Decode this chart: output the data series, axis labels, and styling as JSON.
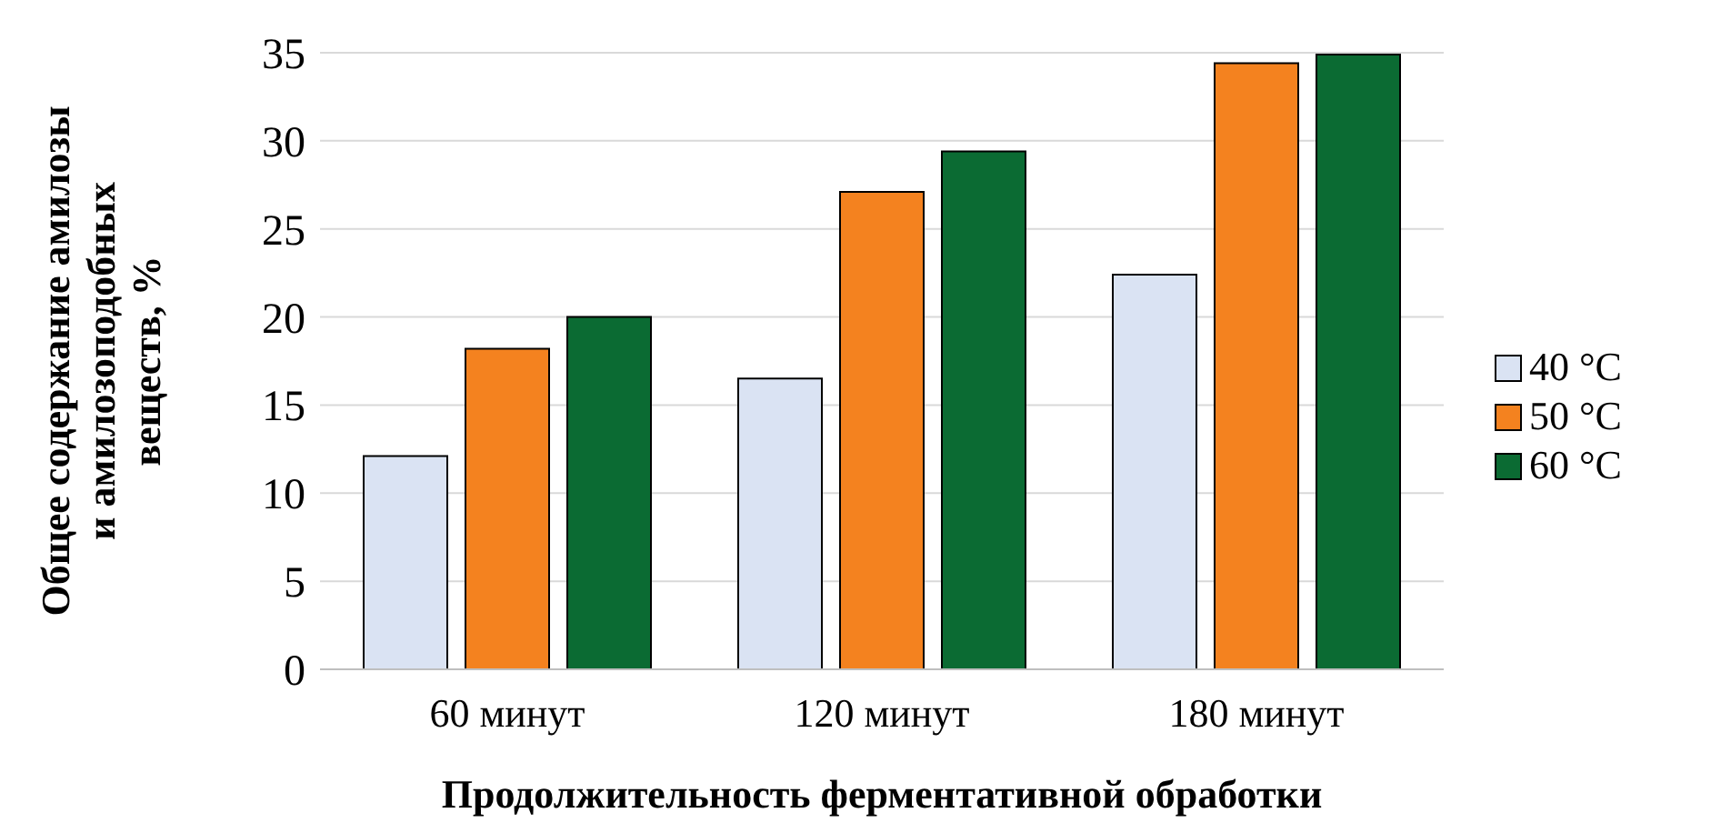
{
  "chart_data": {
    "type": "bar",
    "xlabel": "Продолжительность ферментативной обработки",
    "ylabel": "Общее содержание амилозы\nи амилозоподобных\nвеществ, %",
    "categories": [
      "60 минут",
      "120 минут",
      "180 минут"
    ],
    "series": [
      {
        "name": "40 °C",
        "color": "#dae3f3",
        "values": [
          12.1,
          16.5,
          22.4
        ]
      },
      {
        "name": "50 °C",
        "color": "#f4821f",
        "values": [
          18.2,
          27.1,
          34.4
        ]
      },
      {
        "name": "60 °C",
        "color": "#0b6b33",
        "values": [
          20.0,
          29.4,
          34.9
        ]
      }
    ],
    "ylim": [
      0,
      35
    ],
    "yticks": [
      0,
      5,
      10,
      15,
      20,
      25,
      30,
      35
    ],
    "grid": "y",
    "legend": "right"
  }
}
